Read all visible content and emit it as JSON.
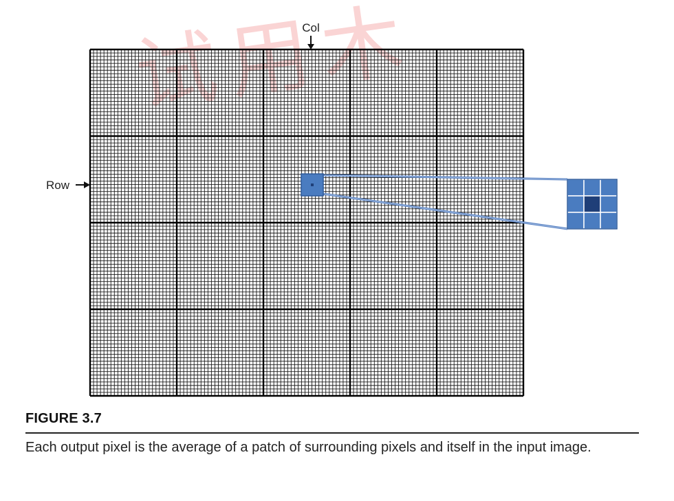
{
  "diagram": {
    "col_label": "Col",
    "row_label": "Row",
    "colors": {
      "grid_line": "#1a1a1a",
      "highlight_fill": "#4a7cc0",
      "highlight_stroke": "#2d5a9a",
      "center_fill": "#1f3f78",
      "connector": "#4a78bf"
    }
  },
  "figure": {
    "label": "FIGURE 3.7",
    "caption": "Each output pixel is the average of a patch of surrounding pixels and itself in the input image."
  },
  "watermark": {
    "text": "试用木"
  }
}
